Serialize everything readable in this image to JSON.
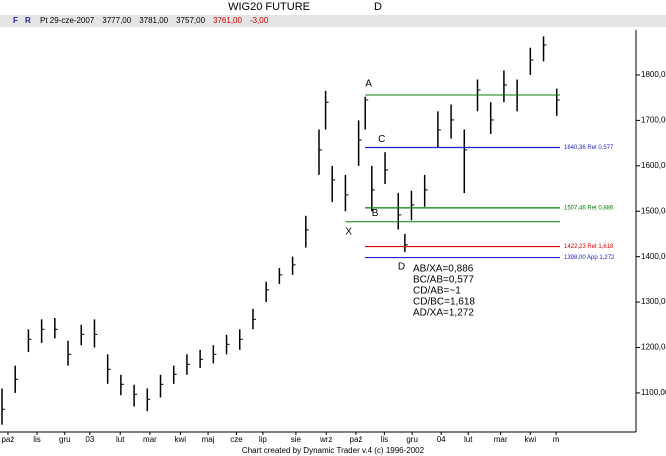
{
  "header": {
    "title": "WIG20 FUTURE",
    "period": "D",
    "buttons": [
      "F",
      "R"
    ],
    "info": [
      {
        "text": "Pt 29-cze-2007",
        "color": "#000000"
      },
      {
        "text": "3777,00",
        "color": "#000000"
      },
      {
        "text": "3781,00",
        "color": "#000000"
      },
      {
        "text": "3757,00",
        "color": "#000000"
      },
      {
        "text": "3761,00",
        "color": "#cc0000"
      },
      {
        "text": "-3,00",
        "color": "#cc0000"
      }
    ]
  },
  "footer": "Chart created by Dynamic Trader v.4  (c) 1996-2002",
  "chart_data": {
    "type": "range-bar",
    "color": "#000000",
    "x": [
      0,
      2,
      4,
      6,
      8,
      10,
      12,
      14,
      16,
      18,
      20,
      22,
      24,
      26,
      28,
      30,
      32,
      34,
      36,
      38,
      40,
      42,
      44,
      46,
      48,
      49,
      50,
      52,
      54,
      55,
      56,
      58,
      60,
      61,
      62,
      64,
      66,
      68,
      70,
      72,
      74,
      76,
      78,
      80,
      82,
      84
    ],
    "high": [
      1110,
      1160,
      1240,
      1262,
      1265,
      1215,
      1250,
      1262,
      1185,
      1140,
      1118,
      1110,
      1140,
      1160,
      1185,
      1195,
      1205,
      1228,
      1240,
      1285,
      1345,
      1375,
      1400,
      1490,
      1680,
      1765,
      1600,
      1580,
      1700,
      1752,
      1600,
      1630,
      1540,
      1450,
      1545,
      1580,
      1720,
      1735,
      1680,
      1790,
      1740,
      1810,
      1790,
      1860,
      1885,
      1770
    ],
    "low": [
      1030,
      1100,
      1190,
      1210,
      1220,
      1160,
      1205,
      1200,
      1120,
      1095,
      1070,
      1060,
      1090,
      1120,
      1140,
      1155,
      1165,
      1185,
      1195,
      1240,
      1300,
      1340,
      1360,
      1420,
      1580,
      1680,
      1520,
      1500,
      1600,
      1680,
      1500,
      1560,
      1460,
      1410,
      1480,
      1510,
      1640,
      1660,
      1540,
      1720,
      1670,
      1740,
      1720,
      1800,
      1830,
      1710
    ],
    "close": [
      1064,
      1130,
      1218,
      1240,
      1240,
      1185,
      1229,
      1229,
      1152,
      1119,
      1097,
      1086,
      1119,
      1141,
      1163,
      1174,
      1185,
      1207,
      1218,
      1262,
      1327,
      1360,
      1382,
      1459,
      1635,
      1740,
      1569,
      1536,
      1657,
      1745,
      1547,
      1591,
      1492,
      1426,
      1514,
      1547,
      1679,
      1701,
      1635,
      1767,
      1701,
      1778,
      1756,
      1833,
      1866,
      1745
    ],
    "xlim": [
      0,
      96
    ],
    "ylim": [
      1014,
      1899
    ],
    "xticks": [
      {
        "value": 0.9,
        "label": "paź"
      },
      {
        "value": 5.3,
        "label": "lis"
      },
      {
        "value": 9.5,
        "label": "gru"
      },
      {
        "value": 13.3,
        "label": "03"
      },
      {
        "value": 17.9,
        "label": "lut"
      },
      {
        "value": 22.4,
        "label": "mar"
      },
      {
        "value": 27,
        "label": "kwi"
      },
      {
        "value": 31.2,
        "label": "maj"
      },
      {
        "value": 35.5,
        "label": "cze"
      },
      {
        "value": 39.5,
        "label": "lip"
      },
      {
        "value": 44.5,
        "label": "sie"
      },
      {
        "value": 49.1,
        "label": "wrz"
      },
      {
        "value": 53.6,
        "label": "paź"
      },
      {
        "value": 57.9,
        "label": "lis"
      },
      {
        "value": 62.1,
        "label": "gru"
      },
      {
        "value": 66.5,
        "label": "04"
      },
      {
        "value": 70.6,
        "label": "lut"
      },
      {
        "value": 75.5,
        "label": "mar"
      },
      {
        "value": 80,
        "label": "kwi"
      },
      {
        "value": 83.9,
        "label": "m"
      }
    ],
    "yticks": [
      {
        "value": 1100,
        "label": "1100,00"
      },
      {
        "value": 1200,
        "label": "1200,00"
      },
      {
        "value": 1300,
        "label": "1300,00"
      },
      {
        "value": 1400,
        "label": "1400,00"
      },
      {
        "value": 1500,
        "label": "1500,00"
      },
      {
        "value": 1600,
        "label": "1600,00"
      },
      {
        "value": 1700,
        "label": "1700,00"
      },
      {
        "value": 1800,
        "label": "1800,00"
      }
    ],
    "guide_lines": [
      {
        "value": 1756,
        "start": 55,
        "color": "#008000"
      },
      {
        "value": 1477,
        "start": 52,
        "color": "#008000"
      }
    ],
    "levels": [
      {
        "value": 1640.36,
        "label": "1640,36 Ret 0,577",
        "color": "#2222cc"
      },
      {
        "value": 1507.46,
        "label": "1507,46 Ret 0,886",
        "color": "#008000"
      },
      {
        "value": 1422.23,
        "label": "1422,23 Ret 1,618",
        "color": "#dd0000"
      },
      {
        "value": 1398,
        "label": "1398,00 App 1,272",
        "color": "#2222cc"
      }
    ],
    "points": [
      {
        "label": "A",
        "x": 55.5,
        "y": 1780
      },
      {
        "label": "B",
        "x": 56.5,
        "y": 1495
      },
      {
        "label": "C",
        "x": 57.5,
        "y": 1658
      },
      {
        "label": "X",
        "x": 52.5,
        "y": 1455
      },
      {
        "label": "D",
        "x": 60.5,
        "y": 1378
      }
    ],
    "ratios": [
      "AB/XA=0,886",
      "BC/AB=0,577",
      "CD/AB=~1",
      "CD/BC=1,618",
      "AD/XA=1,272"
    ]
  }
}
